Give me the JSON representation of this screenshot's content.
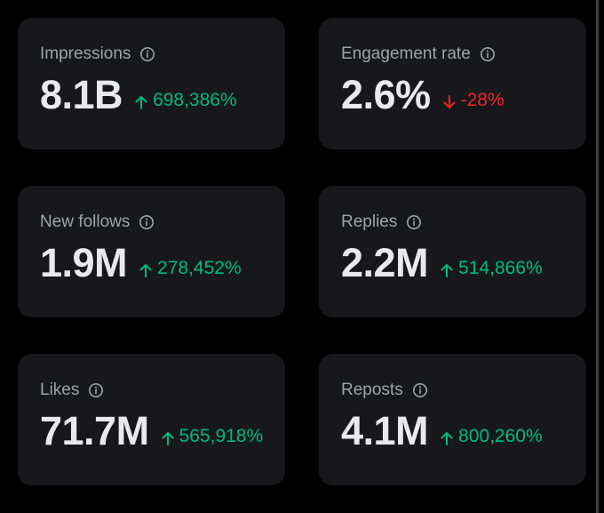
{
  "colors": {
    "background": "#000000",
    "card": "#16181c",
    "label": "#9ea3a8",
    "value": "#e7e9ea",
    "positive": "#00ba7c",
    "negative": "#f4212e"
  },
  "metrics": [
    {
      "label": "Impressions",
      "value": "8.1B",
      "change": "698,386%",
      "direction": "up",
      "info_icon": "info-icon",
      "arrow_icon": "arrow-up-icon"
    },
    {
      "label": "Engagement rate",
      "value": "2.6%",
      "change": "-28%",
      "direction": "down",
      "info_icon": "info-icon",
      "arrow_icon": "arrow-down-icon"
    },
    {
      "label": "New follows",
      "value": "1.9M",
      "change": "278,452%",
      "direction": "up",
      "info_icon": "info-icon",
      "arrow_icon": "arrow-up-icon"
    },
    {
      "label": "Replies",
      "value": "2.2M",
      "change": "514,866%",
      "direction": "up",
      "info_icon": "info-icon",
      "arrow_icon": "arrow-up-icon"
    },
    {
      "label": "Likes",
      "value": "71.7M",
      "change": "565,918%",
      "direction": "up",
      "info_icon": "info-icon",
      "arrow_icon": "arrow-up-icon"
    },
    {
      "label": "Reposts",
      "value": "4.1M",
      "change": "800,260%",
      "direction": "up",
      "info_icon": "info-icon",
      "arrow_icon": "arrow-up-icon"
    }
  ]
}
